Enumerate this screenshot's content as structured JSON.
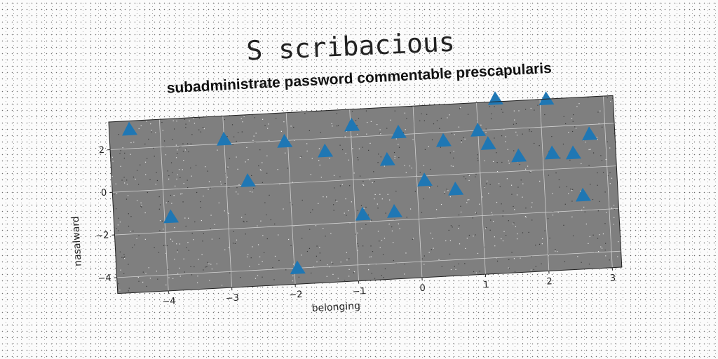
{
  "page_title": "S scribacious",
  "chart_data": {
    "type": "scatter",
    "title": "subadministrate password commentable prescapularis",
    "xlabel": "belonging",
    "ylabel": "nasalward",
    "xlim": [
      -4.8,
      3.15
    ],
    "ylim": [
      -4.75,
      3.3
    ],
    "xticks": [
      -4,
      -3,
      -2,
      -1,
      0,
      1,
      2,
      3
    ],
    "yticks": [
      -4,
      -2,
      0,
      2
    ],
    "grid": true,
    "plot_background": "#7f7f7f",
    "marker": "triangle",
    "marker_color": "#1f77b4",
    "points": [
      {
        "x": -4.48,
        "y": 2.9
      },
      {
        "x": -3.9,
        "y": -1.3
      },
      {
        "x": -3.0,
        "y": 2.2
      },
      {
        "x": -2.66,
        "y": 0.2
      },
      {
        "x": -2.05,
        "y": 1.95
      },
      {
        "x": -1.95,
        "y": -4.0
      },
      {
        "x": -1.42,
        "y": 1.4
      },
      {
        "x": -0.98,
        "y": 2.55
      },
      {
        "x": -0.88,
        "y": -1.65
      },
      {
        "x": -0.45,
        "y": 0.85
      },
      {
        "x": -0.38,
        "y": -1.6
      },
      {
        "x": -0.25,
        "y": 2.1
      },
      {
        "x": 0.12,
        "y": -0.2
      },
      {
        "x": 0.45,
        "y": 1.6
      },
      {
        "x": 0.6,
        "y": -0.7
      },
      {
        "x": 1.0,
        "y": 2.0
      },
      {
        "x": 1.15,
        "y": 1.35
      },
      {
        "x": 1.3,
        "y": 4.0
      },
      {
        "x": 1.62,
        "y": 0.7
      },
      {
        "x": 2.1,
        "y": 3.3
      },
      {
        "x": 2.15,
        "y": 0.75
      },
      {
        "x": 2.48,
        "y": 0.7
      },
      {
        "x": 2.6,
        "y": -1.3
      },
      {
        "x": 2.75,
        "y": 1.55
      }
    ]
  }
}
